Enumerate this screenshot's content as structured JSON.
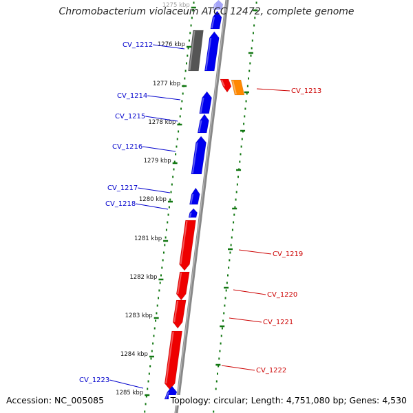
{
  "title": "Chromobacterium violaceum ATCC 12472, complete genome",
  "footer": {
    "accession": "Accession: NC_005085",
    "topology": "Topology: circular; Length: 4,751,080 bp; Genes: 4,530"
  },
  "colors": {
    "reverse_strand_gene": "#0000ee",
    "forward_strand_gene": "#ee0000",
    "pseudo_gene": "#555555",
    "rna_gene": "#ff8800",
    "backbone": "#888888",
    "tick_marks": "#117711",
    "left_label": "#0000cc",
    "right_label": "#cc0000"
  },
  "ticks": [
    {
      "label": "1275 kbp",
      "faded": true
    },
    {
      "label": "1276 kbp"
    },
    {
      "label": "1277 kbp"
    },
    {
      "label": "1278 kbp"
    },
    {
      "label": "1279 kbp"
    },
    {
      "label": "1280 kbp"
    },
    {
      "label": "1281 kbp"
    },
    {
      "label": "1282 kbp"
    },
    {
      "label": "1283 kbp"
    },
    {
      "label": "1284 kbp"
    },
    {
      "label": "1285 kbp"
    }
  ],
  "left_labels": [
    {
      "text": "CV_1212"
    },
    {
      "text": "CV_1214"
    },
    {
      "text": "CV_1215"
    },
    {
      "text": "CV_1216"
    },
    {
      "text": "CV_1217"
    },
    {
      "text": "CV_1218"
    },
    {
      "text": "CV_1223"
    }
  ],
  "right_labels": [
    {
      "text": "CV_1213"
    },
    {
      "text": "CV_1219"
    },
    {
      "text": "CV_1220"
    },
    {
      "text": "CV_1221"
    },
    {
      "text": "CV_1222"
    }
  ]
}
